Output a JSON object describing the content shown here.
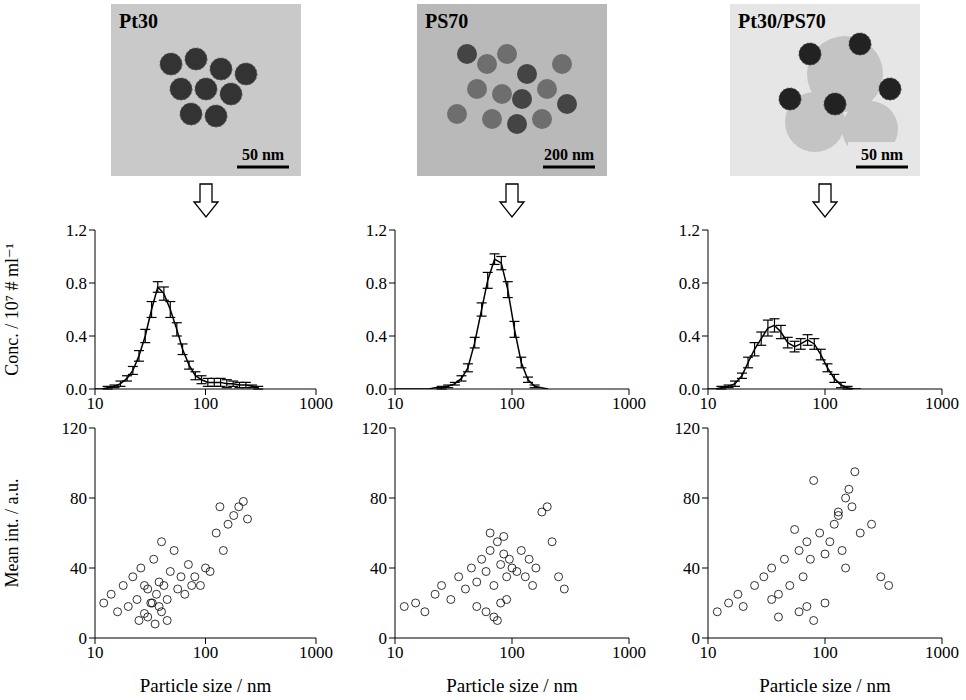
{
  "images": [
    {
      "label": "Pt30",
      "scale_bar": "50 nm"
    },
    {
      "label": "PS70",
      "scale_bar": "200 nm"
    },
    {
      "label": "Pt30/PS70",
      "scale_bar": "50 nm"
    }
  ],
  "chart_data": [
    {
      "type": "line",
      "ylabel": "Conc. / 10⁷ # ml⁻¹",
      "color": "#000000",
      "line_style": "solid",
      "log": "x",
      "xlim": [
        10,
        1000
      ],
      "xticks": [
        10,
        100,
        1000
      ],
      "ylim": [
        0,
        1.2
      ],
      "yticks": [
        {
          "value": 0,
          "label": "0.0"
        },
        0.4,
        0.8,
        1.2
      ],
      "x": [
        10,
        11.5,
        13,
        15,
        17,
        19.5,
        22,
        25,
        28.5,
        32.5,
        37,
        42,
        48,
        55,
        62,
        71,
        81,
        92,
        105,
        120,
        137,
        156,
        178,
        203,
        232,
        264,
        300
      ],
      "values": [
        0,
        0,
        0.01,
        0.02,
        0.04,
        0.08,
        0.14,
        0.25,
        0.4,
        0.6,
        0.77,
        0.72,
        0.6,
        0.45,
        0.3,
        0.18,
        0.1,
        0.07,
        0.05,
        0.05,
        0.05,
        0.04,
        0.04,
        0.03,
        0.03,
        0.02,
        0.01
      ],
      "errors": [
        0,
        0,
        0.01,
        0.01,
        0.02,
        0.02,
        0.03,
        0.04,
        0.05,
        0.06,
        0.04,
        0.05,
        0.06,
        0.05,
        0.04,
        0.03,
        0.03,
        0.03,
        0.03,
        0.03,
        0.03,
        0.03,
        0.02,
        0.02,
        0.02,
        0.01,
        0.01
      ]
    },
    {
      "type": "line",
      "color": "#000000",
      "line_style": "solid",
      "log": "x",
      "xlim": [
        10,
        1000
      ],
      "xticks": [
        10,
        100,
        1000
      ],
      "ylim": [
        0,
        1.2
      ],
      "yticks": [
        {
          "value": 0,
          "label": "0.0"
        },
        0.4,
        0.8,
        1.2
      ],
      "x": [
        10,
        11.5,
        13,
        15,
        17,
        19.5,
        22,
        25,
        28.5,
        32.5,
        37,
        42,
        48,
        55,
        62,
        71,
        81,
        92,
        105,
        120,
        137,
        156,
        178,
        203
      ],
      "values": [
        0,
        0,
        0,
        0,
        0,
        0,
        0.01,
        0.01,
        0.02,
        0.04,
        0.08,
        0.16,
        0.35,
        0.6,
        0.82,
        0.98,
        0.95,
        0.75,
        0.45,
        0.2,
        0.07,
        0.02,
        0.01,
        0
      ],
      "errors": [
        0,
        0,
        0,
        0,
        0,
        0,
        0,
        0.01,
        0.01,
        0.01,
        0.02,
        0.03,
        0.04,
        0.05,
        0.06,
        0.04,
        0.05,
        0.06,
        0.06,
        0.04,
        0.02,
        0.01,
        0,
        0
      ]
    },
    {
      "type": "line",
      "color": "#000000",
      "line_style": "solid",
      "log": "x",
      "xlim": [
        10,
        1000
      ],
      "xticks": [
        10,
        100,
        1000
      ],
      "ylim": [
        0,
        1.2
      ],
      "yticks": [
        {
          "value": 0,
          "label": "0.0"
        },
        0.4,
        0.8,
        1.2
      ],
      "x": [
        10,
        11.5,
        13,
        15,
        17,
        19.5,
        22,
        25,
        28.5,
        32.5,
        37,
        42,
        48,
        55,
        62,
        71,
        81,
        92,
        105,
        120,
        137,
        156,
        178,
        203
      ],
      "values": [
        0,
        0,
        0.01,
        0.02,
        0.04,
        0.1,
        0.2,
        0.3,
        0.38,
        0.46,
        0.48,
        0.43,
        0.35,
        0.32,
        0.34,
        0.37,
        0.34,
        0.26,
        0.16,
        0.08,
        0.03,
        0.01,
        0,
        0
      ],
      "errors": [
        0,
        0,
        0.01,
        0.01,
        0.02,
        0.02,
        0.04,
        0.05,
        0.05,
        0.06,
        0.05,
        0.05,
        0.04,
        0.04,
        0.04,
        0.04,
        0.04,
        0.04,
        0.03,
        0.03,
        0.02,
        0.01,
        0,
        0
      ]
    },
    {
      "type": "scatter",
      "xlabel": "Particle size / nm",
      "ylabel": "Mean int. / a.u.",
      "color": "#000000",
      "marker": "open circle",
      "log": "x",
      "xlim": [
        10,
        1000
      ],
      "xticks": [
        10,
        100,
        1000
      ],
      "ylim": [
        0,
        120
      ],
      "yticks": [
        0,
        40,
        80,
        120
      ],
      "x": [
        12,
        14,
        16,
        18,
        20,
        22,
        24,
        26,
        28,
        30,
        32,
        34,
        36,
        38,
        40,
        42,
        45,
        48,
        52,
        56,
        60,
        65,
        70,
        75,
        80,
        90,
        100,
        110,
        125,
        135,
        145,
        160,
        180,
        200,
        220,
        240,
        25,
        30,
        35,
        40,
        45,
        33,
        28,
        38
      ],
      "values": [
        20,
        25,
        15,
        30,
        18,
        35,
        22,
        40,
        14,
        28,
        20,
        45,
        25,
        18,
        55,
        30,
        22,
        38,
        50,
        28,
        35,
        25,
        42,
        30,
        35,
        30,
        40,
        38,
        60,
        75,
        50,
        65,
        70,
        75,
        78,
        68,
        10,
        12,
        8,
        15,
        10,
        20,
        30,
        32
      ]
    },
    {
      "type": "scatter",
      "xlabel": "Particle size / nm",
      "color": "#000000",
      "marker": "open circle",
      "log": "x",
      "xlim": [
        10,
        1000
      ],
      "xticks": [
        10,
        100,
        1000
      ],
      "ylim": [
        0,
        120
      ],
      "yticks": [
        0,
        40,
        80,
        120
      ],
      "x": [
        12,
        15,
        18,
        22,
        25,
        30,
        35,
        40,
        45,
        50,
        55,
        60,
        65,
        70,
        75,
        80,
        85,
        90,
        95,
        100,
        110,
        120,
        130,
        140,
        150,
        160,
        180,
        200,
        220,
        250,
        280,
        60,
        70,
        80,
        50,
        90,
        65,
        75,
        85
      ],
      "values": [
        18,
        20,
        15,
        25,
        30,
        22,
        35,
        28,
        40,
        32,
        45,
        38,
        50,
        30,
        55,
        42,
        48,
        35,
        45,
        40,
        38,
        50,
        35,
        45,
        30,
        40,
        72,
        75,
        55,
        35,
        28,
        15,
        12,
        20,
        18,
        22,
        60,
        10,
        58
      ]
    },
    {
      "type": "scatter",
      "xlabel": "Particle size / nm",
      "color": "#000000",
      "marker": "open circle",
      "log": "x",
      "xlim": [
        10,
        1000
      ],
      "xticks": [
        10,
        100,
        1000
      ],
      "ylim": [
        0,
        120
      ],
      "yticks": [
        0,
        40,
        80,
        120
      ],
      "x": [
        12,
        15,
        18,
        20,
        25,
        30,
        35,
        40,
        45,
        50,
        55,
        60,
        65,
        70,
        75,
        80,
        90,
        100,
        110,
        120,
        130,
        140,
        150,
        160,
        170,
        180,
        200,
        250,
        300,
        350,
        40,
        60,
        80,
        100,
        35,
        70,
        150,
        130
      ],
      "values": [
        15,
        20,
        25,
        18,
        30,
        35,
        40,
        25,
        45,
        30,
        62,
        50,
        35,
        55,
        45,
        90,
        60,
        48,
        55,
        65,
        70,
        50,
        80,
        85,
        75,
        95,
        60,
        65,
        35,
        30,
        12,
        15,
        10,
        20,
        22,
        18,
        40,
        72
      ]
    }
  ]
}
